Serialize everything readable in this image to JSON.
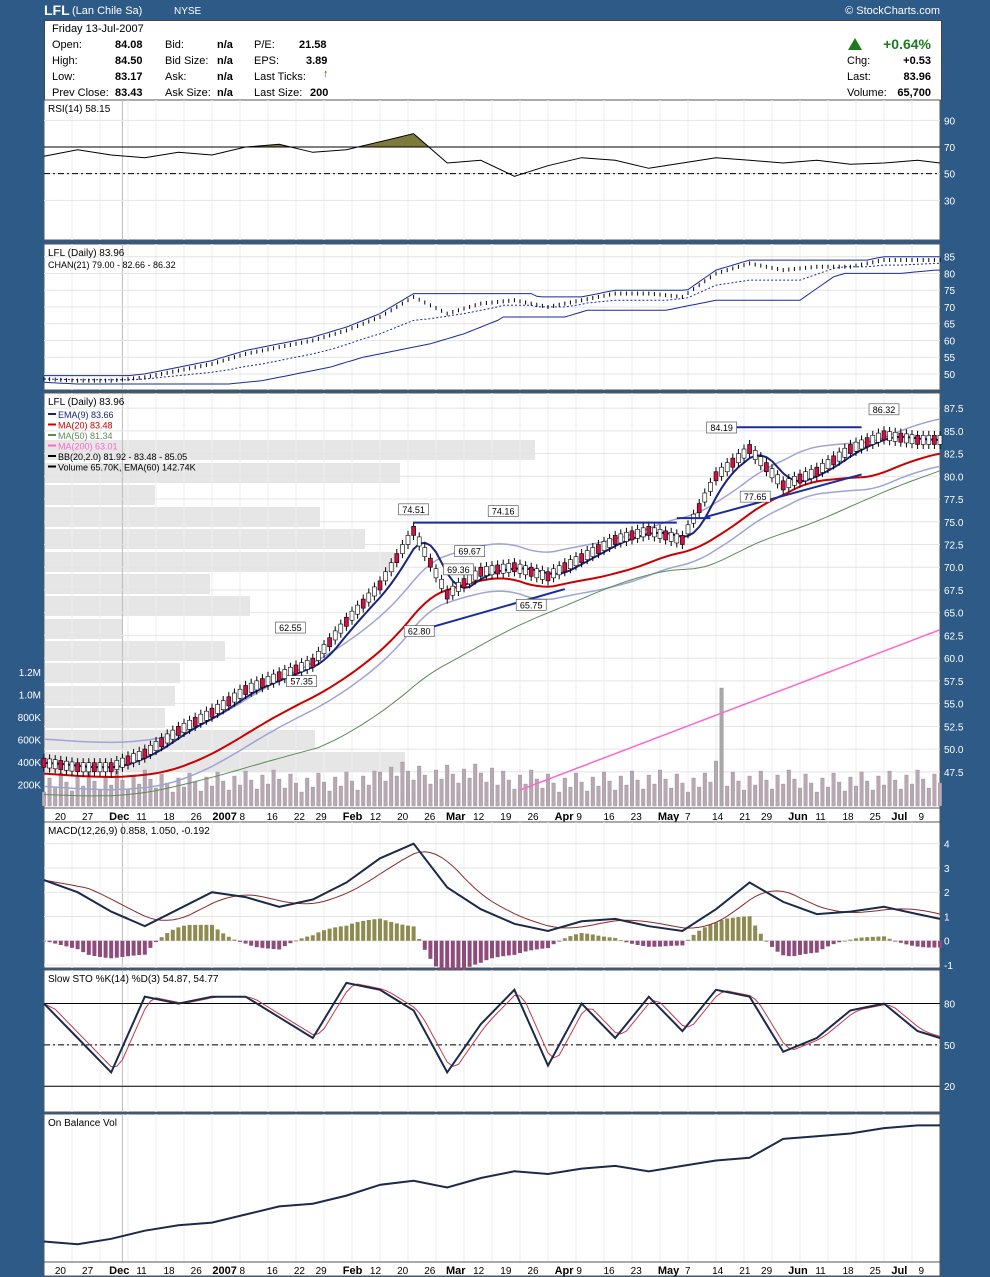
{
  "header": {
    "symbol": "LFL",
    "company": "(Lan Chile Sa)",
    "exchange": "NYSE",
    "credit": "© StockCharts.com"
  },
  "quote": {
    "date": "Friday  13-Jul-2007",
    "open_label": "Open:",
    "open": "84.08",
    "high_label": "High:",
    "high": "84.50",
    "low_label": "Low:",
    "low": "83.17",
    "prev_label": "Prev Close:",
    "prev": "83.43",
    "bid_label": "Bid:",
    "bid": "n/a",
    "bidsize_label": "Bid Size:",
    "bidsize": "n/a",
    "ask_label": "Ask:",
    "ask": "n/a",
    "asksize_label": "Ask Size:",
    "asksize": "n/a",
    "pe_label": "P/E:",
    "pe": "21.58",
    "eps_label": "EPS:",
    "eps": "3.89",
    "lastticks_label": "Last Ticks:",
    "lastsize_label": "Last Size:",
    "lastsize": "200",
    "pct": "+0.64%",
    "chg_label": "Chg:",
    "chg": "+0.53",
    "last_label": "Last:",
    "last": "83.96",
    "vol_label": "Volume:",
    "vol": "65,700"
  },
  "colors": {
    "up": "#1e7a1e",
    "candle_down": "#cc1144",
    "ema9": "#1a237e",
    "ma20": "#cc0000",
    "ma50": "#5a8a5a",
    "ma200": "#ff66cc",
    "bb": "#9fa4d6",
    "trend": "#1a2aa0",
    "rsi_fill": "#7d7a3c",
    "vol_bar": "#b9a7b3",
    "macd_pos": "#8f8a4f",
    "macd_neg": "#8e4b7c"
  },
  "date_axis": [
    "20",
    "27",
    "Dec",
    "11",
    "18",
    "26",
    "2007",
    "8",
    "16",
    "22",
    "29",
    "Feb",
    "12",
    "20",
    "26",
    "Mar",
    "12",
    "19",
    "26",
    "Apr",
    "9",
    "16",
    "23",
    "May",
    "7",
    "14",
    "21",
    "29",
    "Jun",
    "11",
    "18",
    "25",
    "Jul",
    "9"
  ],
  "chart_data": [
    {
      "type": "line",
      "title": "RSI(14) 58.15",
      "yticks": [
        90,
        70,
        50,
        30
      ],
      "ylim": [
        10,
        100
      ],
      "x": [
        0,
        6,
        12,
        18,
        24,
        30,
        36,
        42,
        48,
        54,
        60,
        66,
        72,
        78,
        84,
        90,
        96,
        102,
        108,
        114,
        120,
        126,
        132,
        138,
        144,
        150,
        156,
        160
      ],
      "values": [
        63,
        68,
        64,
        62,
        66,
        64,
        70,
        72,
        66,
        68,
        74,
        80,
        58,
        60,
        48,
        56,
        62,
        60,
        54,
        58,
        62,
        60,
        58,
        60,
        57,
        58,
        60,
        58
      ]
    },
    {
      "type": "line",
      "title": "LFL (Daily) 83.96",
      "legend": [
        "CHAN(21) 79.00 - 82.66 - 86.32"
      ],
      "yticks": [
        85,
        80,
        75,
        70,
        65,
        60,
        55,
        50
      ],
      "ylim": [
        47,
        87
      ],
      "x": [
        0,
        6,
        12,
        18,
        24,
        30,
        36,
        42,
        48,
        54,
        60,
        66,
        72,
        78,
        84,
        90,
        96,
        102,
        108,
        114,
        120,
        126,
        132,
        138,
        144,
        150,
        156,
        160
      ],
      "values": [
        48.5,
        48,
        48,
        49,
        51,
        53,
        56,
        58,
        60,
        63,
        67,
        73,
        68,
        71,
        72,
        70,
        72,
        74,
        74,
        73,
        80,
        83,
        81,
        82,
        82,
        84,
        84,
        84
      ]
    },
    {
      "type": "line",
      "title": "LFL (Daily) 83.96",
      "legend": [
        "EMA(9) 83.66",
        "MA(20) 83.48",
        "MA(50) 81.34",
        "MA(200) 63.01",
        "BB(20,2.0) 81.92 - 83.48 - 85.05",
        "Volume 65.70K, EMA(60) 142.74K"
      ],
      "yticks": [
        87.5,
        85.0,
        82.5,
        80.0,
        77.5,
        75.0,
        72.5,
        70.0,
        67.5,
        65.0,
        62.5,
        60.0,
        57.5,
        55.0,
        52.5,
        50.0,
        47.5
      ],
      "ylim": [
        45.5,
        88.5
      ],
      "volume_ticks": [
        "1.2M",
        "1.0M",
        "800K",
        "600K",
        "400K",
        "200K"
      ],
      "annotations": [
        "74.51",
        "74.16",
        "84.19",
        "86.32",
        "69.67",
        "69.36",
        "62.55",
        "62.80",
        "57.35",
        "65.75",
        "77.65"
      ],
      "x": [
        0,
        6,
        12,
        18,
        24,
        30,
        36,
        42,
        48,
        54,
        60,
        66,
        72,
        78,
        84,
        90,
        96,
        102,
        108,
        114,
        120,
        126,
        132,
        138,
        144,
        150,
        156,
        160
      ],
      "values": [
        48.5,
        48,
        48,
        49.5,
        52,
        54,
        56.5,
        58,
        59.5,
        64,
        68,
        74,
        67,
        69.5,
        70,
        69,
        71,
        73,
        74,
        73,
        80,
        83,
        79,
        80.5,
        83,
        84.5,
        84,
        84
      ]
    },
    {
      "type": "line",
      "title": "MACD(12,26,9) 0.858, 1.050, -0.192",
      "yticks": [
        4,
        3,
        2,
        1,
        0,
        -1
      ],
      "ylim": [
        -1,
        4.4
      ],
      "x": [
        0,
        6,
        12,
        18,
        24,
        30,
        36,
        42,
        48,
        54,
        60,
        66,
        72,
        78,
        84,
        90,
        96,
        102,
        108,
        114,
        120,
        126,
        132,
        138,
        144,
        150,
        156,
        160
      ],
      "values": [
        2.5,
        2.0,
        1.2,
        0.6,
        1.3,
        2.0,
        1.8,
        1.4,
        1.7,
        2.4,
        3.4,
        4.0,
        2.2,
        1.3,
        0.7,
        0.4,
        0.8,
        0.9,
        0.6,
        0.4,
        1.3,
        2.4,
        1.6,
        1.1,
        1.2,
        1.4,
        1.1,
        0.9
      ]
    },
    {
      "type": "line",
      "title": "Slow STO %K(14) %D(3) 54.87, 54.77",
      "yticks": [
        80,
        50,
        20
      ],
      "ylim": [
        10,
        100
      ],
      "x": [
        0,
        6,
        12,
        18,
        24,
        30,
        36,
        42,
        48,
        54,
        60,
        66,
        72,
        78,
        84,
        90,
        96,
        102,
        108,
        114,
        120,
        126,
        132,
        138,
        144,
        150,
        156,
        160
      ],
      "values": [
        80,
        55,
        30,
        85,
        80,
        85,
        85,
        70,
        55,
        95,
        90,
        75,
        30,
        65,
        90,
        35,
        80,
        55,
        85,
        60,
        90,
        85,
        45,
        55,
        75,
        80,
        60,
        55
      ]
    },
    {
      "type": "line",
      "title": "On Balance Vol",
      "x": [
        0,
        6,
        12,
        18,
        24,
        30,
        36,
        42,
        48,
        54,
        60,
        66,
        72,
        78,
        84,
        90,
        96,
        102,
        108,
        114,
        120,
        126,
        132,
        138,
        144,
        150,
        156,
        160
      ],
      "values": [
        10,
        8,
        12,
        18,
        22,
        24,
        30,
        36,
        38,
        44,
        52,
        55,
        50,
        57,
        62,
        60,
        64,
        66,
        62,
        66,
        70,
        72,
        86,
        88,
        90,
        94,
        96,
        96
      ]
    }
  ]
}
